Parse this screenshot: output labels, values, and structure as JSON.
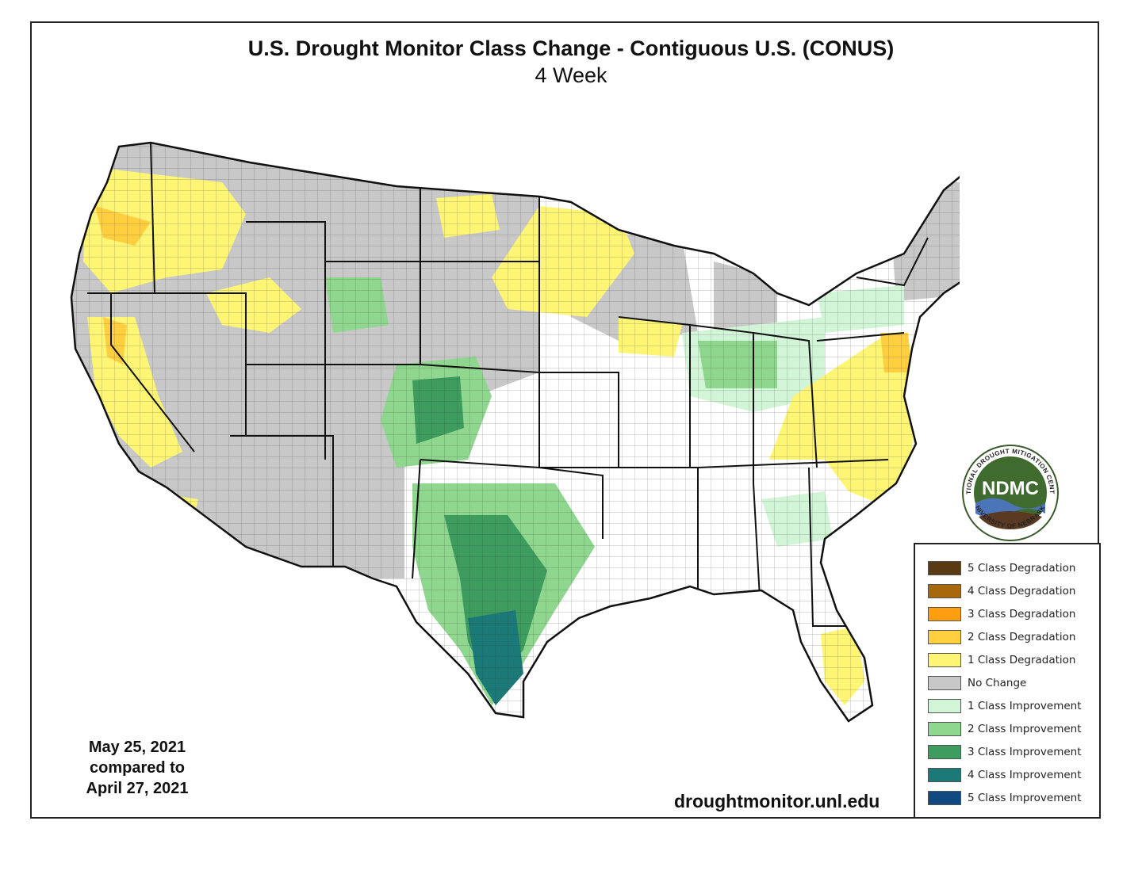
{
  "title": "U.S. Drought Monitor Class Change - Contiguous U.S. (CONUS)",
  "subtitle": "4 Week",
  "date_line1": "May 25, 2021",
  "date_line2": "compared to",
  "date_line3": "April 27, 2021",
  "source_url": "droughtmonitor.unl.edu",
  "logo": {
    "acronym": "NDMC",
    "ring_top": "NATIONAL DROUGHT MITIGATION CENTER",
    "ring_bottom": "UNIVERSITY OF NEBRASKA"
  },
  "legend": [
    {
      "label": "5 Class Degradation",
      "color": "#5a3a12"
    },
    {
      "label": "4 Class Degradation",
      "color": "#a8680e"
    },
    {
      "label": "3 Class Degradation",
      "color": "#ff9f0f"
    },
    {
      "label": "2 Class Degradation",
      "color": "#ffcf40"
    },
    {
      "label": "1 Class Degradation",
      "color": "#fdf573"
    },
    {
      "label": "No Change",
      "color": "#c8c8c8"
    },
    {
      "label": "1 Class Improvement",
      "color": "#d2f5d8"
    },
    {
      "label": "2 Class Improvement",
      "color": "#8fd68e"
    },
    {
      "label": "3 Class Improvement",
      "color": "#3e9c5e"
    },
    {
      "label": "4 Class Improvement",
      "color": "#1b7a78"
    },
    {
      "label": "5 Class Improvement",
      "color": "#114a80"
    }
  ]
}
